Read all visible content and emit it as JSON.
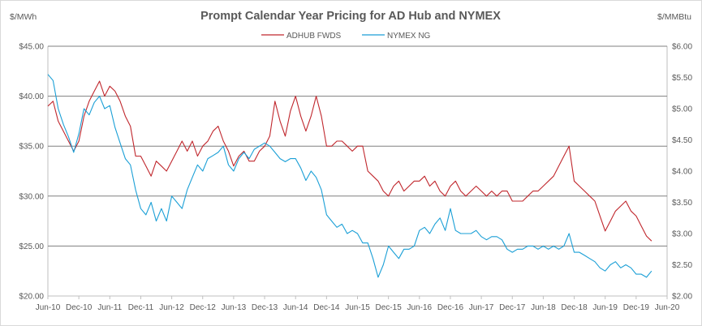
{
  "chart_data": {
    "type": "line",
    "title": "Prompt Calendar Year Pricing for AD Hub and NYMEX",
    "ylabel_left": "$/MWh",
    "ylabel_right": "$/MMBtu",
    "ylim_left": [
      20,
      45
    ],
    "ylim_right": [
      2.0,
      6.0
    ],
    "grid": "horizontal",
    "legend_position": "top",
    "y_ticks_left": [
      "$20.00",
      "$25.00",
      "$30.00",
      "$35.00",
      "$40.00",
      "$45.00"
    ],
    "y_ticks_right": [
      "$2.00",
      "$2.50",
      "$3.00",
      "$3.50",
      "$4.00",
      "$4.50",
      "$5.00",
      "$5.50",
      "$6.00"
    ],
    "x_ticks": [
      "Jun-10",
      "Dec-10",
      "Jun-11",
      "Dec-11",
      "Jun-12",
      "Dec-12",
      "Jun-13",
      "Dec-13",
      "Jun-14",
      "Dec-14",
      "Jun-15",
      "Dec-15",
      "Jun-16",
      "Dec-16",
      "Jun-17",
      "Dec-17",
      "Jun-18",
      "Dec-18",
      "Jun-19",
      "Dec-19",
      "Jun-20"
    ],
    "series": [
      {
        "name": "ADHUB FWDS",
        "axis": "left",
        "color": "#c0272d",
        "x": [
          "2010-06",
          "2010-07",
          "2010-08",
          "2010-09",
          "2010-10",
          "2010-11",
          "2010-12",
          "2011-01",
          "2011-02",
          "2011-03",
          "2011-04",
          "2011-05",
          "2011-06",
          "2011-07",
          "2011-08",
          "2011-09",
          "2011-10",
          "2011-11",
          "2011-12",
          "2012-01",
          "2012-02",
          "2012-03",
          "2012-04",
          "2012-05",
          "2012-06",
          "2012-07",
          "2012-08",
          "2012-09",
          "2012-10",
          "2012-11",
          "2012-12",
          "2013-01",
          "2013-02",
          "2013-03",
          "2013-04",
          "2013-05",
          "2013-06",
          "2013-07",
          "2013-08",
          "2013-09",
          "2013-10",
          "2013-11",
          "2013-12",
          "2014-01",
          "2014-02",
          "2014-03",
          "2014-04",
          "2014-05",
          "2014-06",
          "2014-07",
          "2014-08",
          "2014-09",
          "2014-10",
          "2014-11",
          "2014-12",
          "2015-01",
          "2015-02",
          "2015-03",
          "2015-04",
          "2015-05",
          "2015-06",
          "2015-07",
          "2015-08",
          "2015-09",
          "2015-10",
          "2015-11",
          "2015-12",
          "2016-01",
          "2016-02",
          "2016-03",
          "2016-04",
          "2016-05",
          "2016-06",
          "2016-07",
          "2016-08",
          "2016-09",
          "2016-10",
          "2016-11",
          "2016-12",
          "2017-01",
          "2017-02",
          "2017-03",
          "2017-04",
          "2017-05",
          "2017-06",
          "2017-07",
          "2017-08",
          "2017-09",
          "2017-10",
          "2017-11",
          "2017-12",
          "2018-01",
          "2018-02",
          "2018-03",
          "2018-04",
          "2018-05",
          "2018-06",
          "2018-07",
          "2018-08",
          "2018-09",
          "2018-10",
          "2018-11",
          "2018-12",
          "2019-01",
          "2019-02",
          "2019-03",
          "2019-04",
          "2019-05",
          "2019-06",
          "2019-07",
          "2019-08",
          "2019-09",
          "2019-10",
          "2019-11",
          "2019-12",
          "2020-01",
          "2020-02",
          "2020-03"
        ],
        "values": [
          39.0,
          39.5,
          37.5,
          36.5,
          35.5,
          34.5,
          35.5,
          38.0,
          39.5,
          40.5,
          41.5,
          40.0,
          41.0,
          40.5,
          39.5,
          38.0,
          37.0,
          34.0,
          34.0,
          33.0,
          32.0,
          33.5,
          33.0,
          32.5,
          33.5,
          34.5,
          35.5,
          34.5,
          35.5,
          34.0,
          35.0,
          35.5,
          36.5,
          37.0,
          35.5,
          34.5,
          33.0,
          34.0,
          34.5,
          33.5,
          33.5,
          34.5,
          35.0,
          36.0,
          39.5,
          37.5,
          36.0,
          38.5,
          40.0,
          38.0,
          36.5,
          38.0,
          40.0,
          38.0,
          35.0,
          35.0,
          35.5,
          35.5,
          35.0,
          34.5,
          35.0,
          35.0,
          32.5,
          32.0,
          31.5,
          30.5,
          30.0,
          31.0,
          31.5,
          30.5,
          31.0,
          31.5,
          31.5,
          32.0,
          31.0,
          31.5,
          30.5,
          30.0,
          31.0,
          31.5,
          30.5,
          30.0,
          30.5,
          31.0,
          30.5,
          30.0,
          30.5,
          30.0,
          30.5,
          30.5,
          29.5,
          29.5,
          29.5,
          30.0,
          30.5,
          30.5,
          31.0,
          31.5,
          32.0,
          33.0,
          34.0,
          35.0,
          31.5,
          31.0,
          30.5,
          30.0,
          29.5,
          28.0,
          26.5,
          27.5,
          28.5,
          29.0,
          29.5,
          28.5,
          28.0,
          27.0,
          26.0,
          25.5
        ]
      },
      {
        "name": "NYMEX NG",
        "axis": "right",
        "color": "#1a9fd6",
        "x": [
          "2010-06",
          "2010-07",
          "2010-08",
          "2010-09",
          "2010-10",
          "2010-11",
          "2010-12",
          "2011-01",
          "2011-02",
          "2011-03",
          "2011-04",
          "2011-05",
          "2011-06",
          "2011-07",
          "2011-08",
          "2011-09",
          "2011-10",
          "2011-11",
          "2011-12",
          "2012-01",
          "2012-02",
          "2012-03",
          "2012-04",
          "2012-05",
          "2012-06",
          "2012-07",
          "2012-08",
          "2012-09",
          "2012-10",
          "2012-11",
          "2012-12",
          "2013-01",
          "2013-02",
          "2013-03",
          "2013-04",
          "2013-05",
          "2013-06",
          "2013-07",
          "2013-08",
          "2013-09",
          "2013-10",
          "2013-11",
          "2013-12",
          "2014-01",
          "2014-02",
          "2014-03",
          "2014-04",
          "2014-05",
          "2014-06",
          "2014-07",
          "2014-08",
          "2014-09",
          "2014-10",
          "2014-11",
          "2014-12",
          "2015-01",
          "2015-02",
          "2015-03",
          "2015-04",
          "2015-05",
          "2015-06",
          "2015-07",
          "2015-08",
          "2015-09",
          "2015-10",
          "2015-11",
          "2015-12",
          "2016-01",
          "2016-02",
          "2016-03",
          "2016-04",
          "2016-05",
          "2016-06",
          "2016-07",
          "2016-08",
          "2016-09",
          "2016-10",
          "2016-11",
          "2016-12",
          "2017-01",
          "2017-02",
          "2017-03",
          "2017-04",
          "2017-05",
          "2017-06",
          "2017-07",
          "2017-08",
          "2017-09",
          "2017-10",
          "2017-11",
          "2017-12",
          "2018-01",
          "2018-02",
          "2018-03",
          "2018-04",
          "2018-05",
          "2018-06",
          "2018-07",
          "2018-08",
          "2018-09",
          "2018-10",
          "2018-11",
          "2018-12",
          "2019-01",
          "2019-02",
          "2019-03",
          "2019-04",
          "2019-05",
          "2019-06",
          "2019-07",
          "2019-08",
          "2019-09",
          "2019-10",
          "2019-11",
          "2019-12",
          "2020-01",
          "2020-02",
          "2020-03"
        ],
        "values": [
          5.55,
          5.45,
          5.0,
          4.75,
          4.55,
          4.3,
          4.6,
          5.0,
          4.9,
          5.1,
          5.2,
          5.0,
          5.05,
          4.7,
          4.45,
          4.2,
          4.1,
          3.7,
          3.4,
          3.3,
          3.5,
          3.2,
          3.4,
          3.2,
          3.6,
          3.5,
          3.4,
          3.7,
          3.9,
          4.1,
          4.0,
          4.2,
          4.25,
          4.3,
          4.4,
          4.1,
          4.0,
          4.2,
          4.3,
          4.2,
          4.35,
          4.4,
          4.45,
          4.4,
          4.3,
          4.2,
          4.15,
          4.2,
          4.2,
          4.05,
          3.85,
          4.0,
          3.9,
          3.7,
          3.3,
          3.2,
          3.1,
          3.15,
          3.0,
          3.05,
          3.0,
          2.85,
          2.85,
          2.6,
          2.3,
          2.5,
          2.8,
          2.7,
          2.6,
          2.75,
          2.75,
          2.8,
          3.05,
          3.1,
          3.0,
          3.15,
          3.25,
          3.05,
          3.4,
          3.05,
          3.0,
          3.0,
          3.0,
          3.05,
          2.95,
          2.9,
          2.95,
          2.95,
          2.9,
          2.75,
          2.7,
          2.75,
          2.75,
          2.8,
          2.8,
          2.75,
          2.8,
          2.75,
          2.8,
          2.75,
          2.8,
          3.0,
          2.7,
          2.7,
          2.65,
          2.6,
          2.55,
          2.45,
          2.4,
          2.5,
          2.55,
          2.45,
          2.5,
          2.45,
          2.35,
          2.35,
          2.3,
          2.4
        ]
      }
    ]
  }
}
